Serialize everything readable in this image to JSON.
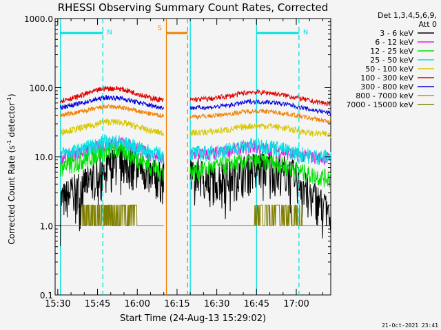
{
  "chart_data": {
    "type": "line",
    "title": "RHESSI Observing Summary Count Rates, Corrected",
    "xlabel": "Start Time (24-Aug-13 15:29:02)",
    "ylabel_main": "Corrected Count Rate (s",
    "ylabel_sup1": "-1",
    "ylabel_mid": " detector",
    "ylabel_sup2": "-1",
    "ylabel_end": ")",
    "yscale": "log",
    "ylim": [
      0.1,
      1000
    ],
    "xlim_min": [
      929,
      1033
    ],
    "xticks": [
      {
        "value": 930,
        "label": "15:30"
      },
      {
        "value": 945,
        "label": "15:45"
      },
      {
        "value": 960,
        "label": "16:00"
      },
      {
        "value": 975,
        "label": "16:15"
      },
      {
        "value": 990,
        "label": "16:30"
      },
      {
        "value": 1005,
        "label": "16:45"
      },
      {
        "value": 1020,
        "label": "17:00"
      }
    ],
    "yticks": [
      {
        "value": 1000,
        "label": "1000.0"
      },
      {
        "value": 100,
        "label": "100.0"
      },
      {
        "value": 10,
        "label": "10.0"
      },
      {
        "value": 1,
        "label": "1.0"
      },
      {
        "value": 0.1,
        "label": "0.1"
      }
    ],
    "legend": {
      "header1": "Det 1,3,4,5,6,9,",
      "header2": "Att 0",
      "placement": "right"
    },
    "series": [
      {
        "name": "3 - 6 keV",
        "color": "#000000",
        "values_first": [
          2.4,
          3.5,
          5.0,
          6.5,
          9.5,
          8.5,
          6.0,
          5.0
        ],
        "values_second": [
          6.5,
          5.0,
          5.5,
          7.0,
          8.0,
          6.0,
          3.0,
          1.5
        ]
      },
      {
        "name": "6 - 12 keV",
        "color": "#e020e0",
        "values_first": [
          10.0,
          11.0,
          13.0,
          15.0,
          16.0,
          14.0,
          11.0,
          9.0
        ],
        "values_second": [
          11.0,
          11.0,
          12.5,
          14.0,
          13.0,
          11.0,
          10.0,
          9.5
        ]
      },
      {
        "name": "12 - 25 keV",
        "color": "#00e000",
        "values_first": [
          7.0,
          8.0,
          10.0,
          12.0,
          13.0,
          10.0,
          7.5,
          6.0
        ],
        "values_second": [
          6.0,
          7.0,
          8.0,
          8.5,
          8.5,
          7.0,
          5.5,
          5.0
        ]
      },
      {
        "name": "25 - 50 keV",
        "color": "#00e0e0",
        "values_first": [
          11.0,
          12.0,
          14.0,
          16.5,
          16.5,
          14.0,
          12.0,
          10.5
        ],
        "values_second": [
          11.5,
          11.5,
          13.0,
          15.0,
          14.5,
          12.0,
          10.5,
          10.0
        ]
      },
      {
        "name": "50 - 100 keV",
        "color": "#d8c800",
        "values_first": [
          23.0,
          25.0,
          28.0,
          32.0,
          32.0,
          28.0,
          24.0,
          22.0
        ],
        "values_second": [
          22.0,
          23.0,
          25.0,
          28.0,
          28.0,
          25.0,
          22.0,
          21.0
        ]
      },
      {
        "name": "100 - 300 keV",
        "color": "#e00000",
        "values_first": [
          65.0,
          72.0,
          85.0,
          98.0,
          97.0,
          85.0,
          72.0,
          65.0
        ],
        "values_second": [
          67.0,
          69.0,
          76.0,
          87.0,
          84.0,
          75.0,
          64.0,
          58.0
        ]
      },
      {
        "name": "300 - 800 keV",
        "color": "#0000e0",
        "values_first": [
          52.0,
          57.0,
          64.0,
          72.0,
          71.0,
          63.0,
          56.0,
          51.0
        ],
        "values_second": [
          51.0,
          52.0,
          56.0,
          63.0,
          62.0,
          56.0,
          48.0,
          43.0
        ]
      },
      {
        "name": "800 - 7000 keV",
        "color": "#f08000",
        "values_first": [
          40.0,
          43.0,
          48.0,
          53.0,
          52.0,
          47.0,
          42.0,
          39.0
        ],
        "values_second": [
          38.0,
          39.0,
          42.0,
          46.0,
          45.0,
          41.0,
          36.0,
          32.0
        ]
      },
      {
        "name": "7000 - 15000 keV",
        "color": "#808000",
        "values_first": [
          1.0,
          1.0,
          1.0,
          1.0,
          1.0,
          1.0,
          1.0,
          1.0
        ],
        "values_second": [
          1.0,
          1.0,
          1.0,
          1.0,
          1.0,
          1.0,
          1.0,
          1.0
        ]
      }
    ],
    "series_time_ranges_min": [
      [
        931,
        970
      ],
      [
        980,
        1033
      ]
    ],
    "data_gaps_min": [
      [
        970,
        980
      ]
    ],
    "markers": [
      {
        "label": "N",
        "color": "#00e0e0",
        "bar_min": [
          931,
          947
        ],
        "dash_min": 947
      },
      {
        "label": "N",
        "color": "#00e0e0",
        "bar_min": [
          1005,
          1021
        ],
        "dash_min": 1021
      },
      {
        "label": "S",
        "color": "#f08000",
        "bar_min": [
          971,
          979
        ],
        "dash_min": 979
      }
    ],
    "region_lines_min": [
      {
        "value": 931,
        "color": "#00e0e0"
      },
      {
        "value": 1005,
        "color": "#00e0e0"
      },
      {
        "value": 980,
        "color": "#00e0e0"
      },
      {
        "value": 971,
        "color": "#f08000"
      }
    ],
    "footer_date": "21-Oct-2021 23:41"
  }
}
